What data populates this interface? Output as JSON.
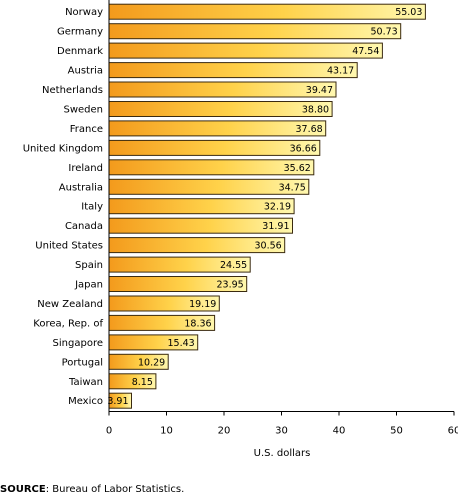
{
  "chart_data": {
    "type": "bar",
    "orientation": "horizontal",
    "categories": [
      "Norway",
      "Germany",
      "Denmark",
      "Austria",
      "Netherlands",
      "Sweden",
      "France",
      "United Kingdom",
      "Ireland",
      "Australia",
      "Italy",
      "Canada",
      "United States",
      "Spain",
      "Japan",
      "New Zealand",
      "Korea, Rep. of",
      "Singapore",
      "Portugal",
      "Taiwan",
      "Mexico"
    ],
    "values": [
      55.03,
      50.73,
      47.54,
      43.17,
      39.47,
      38.8,
      37.68,
      36.66,
      35.62,
      34.75,
      32.19,
      31.91,
      30.56,
      24.55,
      23.95,
      19.19,
      18.36,
      15.43,
      10.29,
      8.15,
      3.91
    ],
    "value_labels": [
      "55.03",
      "50.73",
      "47.54",
      "43.17",
      "39.47",
      "38.80",
      "37.68",
      "36.66",
      "35.62",
      "34.75",
      "32.19",
      "31.91",
      "30.56",
      "24.55",
      "23.95",
      "19.19",
      "18.36",
      "15.43",
      "10.29",
      "8.15",
      "3.91"
    ],
    "xlabel": "U.S. dollars",
    "xlim": [
      0,
      60
    ],
    "xticks": [
      "0",
      "10",
      "20",
      "30",
      "40",
      "50",
      "60"
    ],
    "grid": false,
    "colors": {
      "bar_light": "#fff7a8",
      "bar_dark": "#f59a1e",
      "bar_border": "#3a2a10"
    }
  },
  "source": {
    "label": "SOURCE",
    "text": ": Bureau of Labor Statistics."
  }
}
